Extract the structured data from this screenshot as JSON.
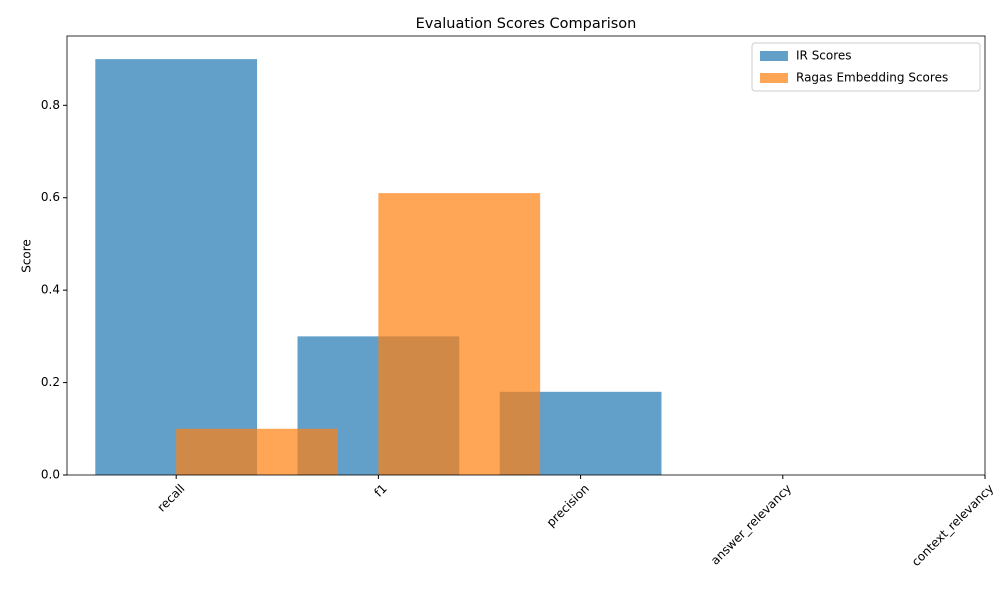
{
  "chart_data": {
    "type": "bar",
    "title": "Evaluation Scores Comparison",
    "ylabel": "Score",
    "xlim": [
      -0.54,
      4.0
    ],
    "xticks": [
      {
        "value": 0,
        "label": "recall"
      },
      {
        "value": 1,
        "label": "f1"
      },
      {
        "value": 2,
        "label": "precision"
      },
      {
        "value": 3,
        "label": "answer_relevancy"
      },
      {
        "value": 4,
        "label": "context_relevancy"
      }
    ],
    "ylim": [
      0,
      0.95
    ],
    "yticks": [
      {
        "value": 0,
        "label": "0.0"
      },
      {
        "value": 0.2,
        "label": "0.2"
      },
      {
        "value": 0.4,
        "label": "0.4"
      },
      {
        "value": 0.6,
        "label": "0.6"
      },
      {
        "value": 0.8,
        "label": "0.8"
      }
    ],
    "series": [
      {
        "name": "IR Scores",
        "color": "#1f77b4",
        "x": [
          0,
          1,
          2
        ],
        "values": [
          0.9,
          0.3,
          0.18
        ]
      },
      {
        "name": "Ragas Embedding Scores",
        "color": "#ff7f0e",
        "x": [
          0.4,
          1.4
        ],
        "values": [
          0.1,
          0.61
        ]
      }
    ],
    "legend": "upper right"
  }
}
